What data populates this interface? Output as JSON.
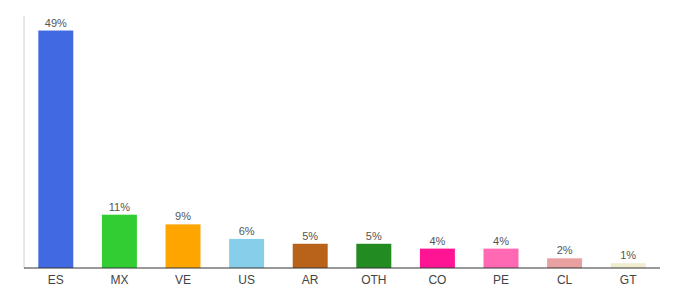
{
  "chart_data": {
    "type": "bar",
    "categories": [
      "ES",
      "MX",
      "VE",
      "US",
      "AR",
      "OTH",
      "CO",
      "PE",
      "CL",
      "GT"
    ],
    "values": [
      49,
      11,
      9,
      6,
      5,
      5,
      4,
      4,
      2,
      1
    ],
    "value_labels": [
      "49%",
      "11%",
      "9%",
      "6%",
      "5%",
      "5%",
      "4%",
      "4%",
      "2%",
      "1%"
    ],
    "colors": [
      "#4169e1",
      "#32cd32",
      "#ffa500",
      "#87ceeb",
      "#b8621a",
      "#228b22",
      "#ff1493",
      "#ff69b4",
      "#e8a0a0",
      "#f0ecd0"
    ],
    "ylim": [
      0,
      52
    ],
    "data_labels": true,
    "tick_labels": "x"
  }
}
